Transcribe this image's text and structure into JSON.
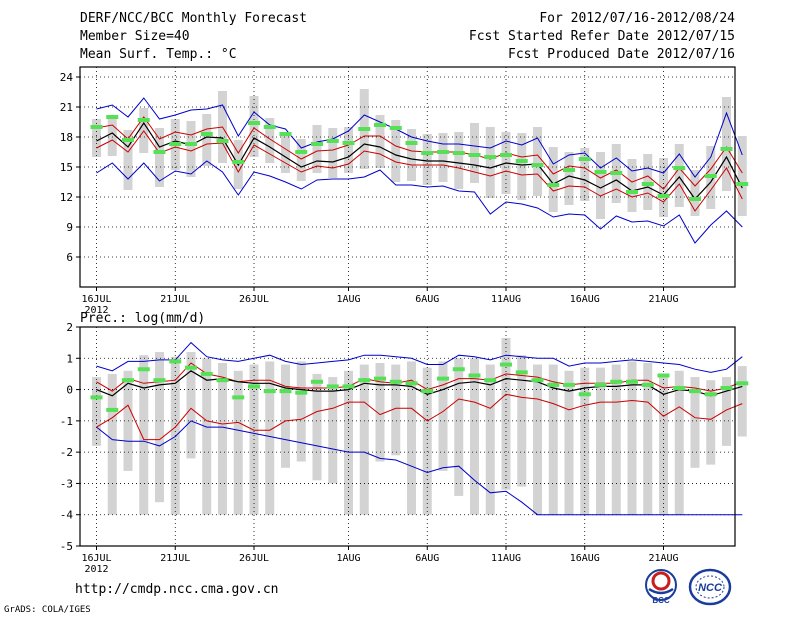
{
  "header": {
    "title": "DERF/NCC/BCC Monthly Forecast",
    "member_size": "Member Size=40",
    "variable": "Mean Surf. Temp.: °C",
    "fcst_range": "For 2012/07/16-2012/08/24",
    "fcst_started": "Fcst Started Refer Date 2012/07/15",
    "fcst_produced": "Fcst Produced Date 2012/07/16"
  },
  "footer": {
    "url": "http://cmdp.ncc.cma.gov.cn",
    "grads": "GrADS: COLA/IGES",
    "logo_bcc": "BCC",
    "logo_ncc": "NCC"
  },
  "colors": {
    "mean": "#000000",
    "quartile": "#cc0000",
    "envelope": "#0000cc",
    "box": "#d3d3d3",
    "obs": "#55e055"
  },
  "chart_data": [
    {
      "type": "line",
      "title": "Mean Surf. Temp.: °C",
      "xlabel": "",
      "ylabel": "",
      "ylim": [
        3,
        25
      ],
      "yticks": [
        6,
        9,
        12,
        15,
        18,
        21,
        24
      ],
      "xticks": [
        {
          "day": 0,
          "label": "16JUL",
          "sub": "2012"
        },
        {
          "day": 5,
          "label": "21JUL"
        },
        {
          "day": 10,
          "label": "26JUL"
        },
        {
          "day": 16,
          "label": "1AUG"
        },
        {
          "day": 21,
          "label": "6AUG"
        },
        {
          "day": 26,
          "label": "11AUG"
        },
        {
          "day": 31,
          "label": "16AUG"
        },
        {
          "day": 36,
          "label": "21AUG"
        }
      ],
      "series": [
        {
          "name": "max",
          "values": [
            20.8,
            21.2,
            20.0,
            21.9,
            19.8,
            20.2,
            20.7,
            20.8,
            21.2,
            18.1,
            20.5,
            19.2,
            18.8,
            16.9,
            17.5,
            17.8,
            18.6,
            20.2,
            19.5,
            18.8,
            18.0,
            17.6,
            17.3,
            17.3,
            17.1,
            16.9,
            17.6,
            17.2,
            17.9,
            15.3,
            16.2,
            16.4,
            14.9,
            15.9,
            14.6,
            14.9,
            14.4,
            16.3,
            14.0,
            16.0,
            20.4,
            16.2
          ]
        },
        {
          "name": "q75",
          "values": [
            18.9,
            19.2,
            17.8,
            20.0,
            17.8,
            18.5,
            18.2,
            18.8,
            19.0,
            16.4,
            18.9,
            17.8,
            16.8,
            15.8,
            16.6,
            16.7,
            17.2,
            18.1,
            18.1,
            17.1,
            16.6,
            16.5,
            16.5,
            16.5,
            16.2,
            15.8,
            16.4,
            16.0,
            16.2,
            14.3,
            15.1,
            14.9,
            13.9,
            14.7,
            13.5,
            14.1,
            12.8,
            14.9,
            13.1,
            14.8,
            17.0,
            14.4
          ]
        },
        {
          "name": "mean",
          "values": [
            17.6,
            18.4,
            17.0,
            19.4,
            17.0,
            17.6,
            17.2,
            18.0,
            17.9,
            15.2,
            17.9,
            17.0,
            16.0,
            15.0,
            15.6,
            15.5,
            16.0,
            17.3,
            17.0,
            16.2,
            15.8,
            15.6,
            15.6,
            15.4,
            15.2,
            14.9,
            15.4,
            15.2,
            15.3,
            13.3,
            14.1,
            13.7,
            12.9,
            13.7,
            12.6,
            13.0,
            12.2,
            14.0,
            11.8,
            13.5,
            16.0,
            12.9
          ]
        },
        {
          "name": "q25",
          "values": [
            16.9,
            17.7,
            16.5,
            18.6,
            16.4,
            17.0,
            16.6,
            17.3,
            17.4,
            14.5,
            17.2,
            16.3,
            15.4,
            14.5,
            15.1,
            14.9,
            15.3,
            16.6,
            16.3,
            15.5,
            15.2,
            15.2,
            15.2,
            14.9,
            14.5,
            14.1,
            14.6,
            14.2,
            14.3,
            12.6,
            13.1,
            13.0,
            12.1,
            12.8,
            12.0,
            12.4,
            11.5,
            13.3,
            10.6,
            12.7,
            14.9,
            11.8
          ]
        },
        {
          "name": "min",
          "values": [
            14.4,
            15.4,
            13.8,
            15.4,
            13.6,
            14.6,
            14.3,
            15.6,
            14.5,
            12.2,
            14.5,
            14.1,
            13.5,
            12.8,
            13.7,
            13.8,
            13.8,
            14.0,
            14.7,
            13.2,
            13.2,
            13.0,
            13.1,
            12.6,
            12.5,
            10.3,
            11.5,
            11.3,
            10.9,
            10.0,
            10.3,
            10.2,
            8.8,
            10.1,
            9.5,
            9.6,
            9.1,
            10.2,
            7.4,
            9.2,
            10.6,
            9.0
          ]
        },
        {
          "name": "box_hi",
          "values": [
            19.8,
            20.2,
            18.7,
            20.9,
            18.9,
            19.8,
            19.6,
            20.3,
            22.6,
            17.7,
            22.1,
            19.9,
            18.4,
            17.8,
            19.2,
            18.9,
            19.0,
            22.8,
            20.2,
            19.7,
            18.8,
            18.3,
            18.4,
            18.5,
            19.4,
            19.0,
            18.5,
            18.4,
            19.0,
            17.0,
            16.5,
            16.9,
            16.5,
            17.3,
            15.8,
            16.3,
            15.9,
            17.3,
            14.7,
            17.1,
            22.0,
            18.1
          ]
        },
        {
          "name": "box_lo",
          "values": [
            16.0,
            16.1,
            12.7,
            16.4,
            13.0,
            14.7,
            14.0,
            15.1,
            15.4,
            12.8,
            16.0,
            15.4,
            14.4,
            13.6,
            14.4,
            13.9,
            14.4,
            14.8,
            14.9,
            13.5,
            13.6,
            13.2,
            13.5,
            12.8,
            13.4,
            11.9,
            12.3,
            11.7,
            12.1,
            10.5,
            11.2,
            11.6,
            9.8,
            11.4,
            10.5,
            10.7,
            10.0,
            11.0,
            10.1,
            10.8,
            12.6,
            10.1
          ]
        },
        {
          "name": "obs",
          "values": [
            19.0,
            20.0,
            17.7,
            19.7,
            16.5,
            17.3,
            17.3,
            18.3,
            17.6,
            15.5,
            19.4,
            19.0,
            18.3,
            16.5,
            17.3,
            17.6,
            17.4,
            18.8,
            19.2,
            18.9,
            17.4,
            16.4,
            16.5,
            16.4,
            16.2,
            16.0,
            16.2,
            15.6,
            15.2,
            13.2,
            14.7,
            15.8,
            14.5,
            14.4,
            12.5,
            13.3,
            12.1,
            14.9,
            11.8,
            14.1,
            16.8,
            13.3
          ]
        }
      ]
    },
    {
      "type": "line",
      "title": "Prec.: log(mm/d)",
      "xlabel": "",
      "ylabel": "",
      "ylim": [
        -5,
        2
      ],
      "yticks": [
        -5,
        -4,
        -3,
        -2,
        -1,
        0,
        1,
        2
      ],
      "xticks": [
        {
          "day": 0,
          "label": "16JUL",
          "sub": "2012"
        },
        {
          "day": 5,
          "label": "21JUL"
        },
        {
          "day": 10,
          "label": "26JUL"
        },
        {
          "day": 16,
          "label": "1AUG"
        },
        {
          "day": 21,
          "label": "6AUG"
        },
        {
          "day": 26,
          "label": "11AUG"
        },
        {
          "day": 31,
          "label": "16AUG"
        },
        {
          "day": 36,
          "label": "21AUG"
        }
      ],
      "series": [
        {
          "name": "max",
          "values": [
            0.75,
            0.6,
            0.9,
            0.9,
            0.95,
            0.95,
            1.5,
            1.05,
            0.95,
            0.9,
            1.0,
            1.1,
            0.9,
            0.8,
            0.85,
            0.9,
            0.95,
            1.1,
            1.1,
            1.05,
            1.0,
            0.8,
            0.8,
            1.1,
            1.05,
            0.95,
            1.1,
            1.05,
            1.0,
            1.0,
            0.75,
            0.85,
            0.85,
            0.9,
            0.95,
            0.9,
            0.85,
            0.8,
            0.65,
            0.55,
            0.65,
            1.05
          ]
        },
        {
          "name": "q75",
          "values": [
            0.25,
            -0.05,
            0.35,
            0.2,
            0.25,
            0.3,
            0.85,
            0.5,
            0.4,
            0.25,
            0.3,
            0.3,
            0.1,
            0.05,
            0.05,
            0.05,
            0.1,
            0.35,
            0.25,
            0.2,
            0.3,
            0.0,
            0.15,
            0.35,
            0.35,
            0.3,
            0.5,
            0.45,
            0.4,
            0.25,
            0.15,
            0.2,
            0.2,
            0.2,
            0.3,
            0.3,
            0.05,
            0.1,
            0.05,
            -0.05,
            0.05,
            0.25
          ]
        },
        {
          "name": "mean",
          "values": [
            0.0,
            -0.2,
            0.2,
            0.05,
            0.15,
            0.2,
            0.6,
            0.3,
            0.35,
            0.25,
            0.2,
            0.2,
            0.05,
            0.0,
            -0.05,
            -0.05,
            0.0,
            0.2,
            0.15,
            0.15,
            0.1,
            -0.15,
            0.0,
            0.2,
            0.25,
            0.15,
            0.35,
            0.3,
            0.25,
            0.05,
            -0.05,
            0.05,
            0.1,
            0.1,
            0.15,
            0.15,
            -0.15,
            0.0,
            -0.05,
            -0.2,
            -0.05,
            0.1
          ]
        },
        {
          "name": "q25",
          "values": [
            -1.2,
            -0.9,
            -0.5,
            -1.6,
            -1.6,
            -1.2,
            -0.6,
            -1.0,
            -1.1,
            -1.05,
            -1.3,
            -1.3,
            -1.0,
            -0.95,
            -0.7,
            -0.6,
            -0.4,
            -0.4,
            -0.8,
            -0.6,
            -0.6,
            -1.0,
            -0.7,
            -0.3,
            -0.4,
            -0.6,
            -0.15,
            -0.25,
            -0.3,
            -0.45,
            -0.65,
            -0.5,
            -0.4,
            -0.4,
            -0.35,
            -0.4,
            -0.85,
            -0.55,
            -0.9,
            -0.95,
            -0.65,
            -0.45
          ]
        },
        {
          "name": "min",
          "values": [
            -1.2,
            -1.6,
            -1.65,
            -1.65,
            -1.8,
            -1.5,
            -1.0,
            -1.2,
            -1.2,
            -1.3,
            -1.4,
            -1.5,
            -1.6,
            -1.7,
            -1.8,
            -1.9,
            -2.0,
            -2.0,
            -2.2,
            -2.25,
            -2.45,
            -2.65,
            -2.5,
            -2.45,
            -2.9,
            -3.3,
            -3.25,
            -3.6,
            -4.0,
            -4.0,
            -4.0,
            -4.0,
            -4.0,
            -4.0,
            -4.0,
            -4.0,
            -4.0,
            -4.0,
            -4.0,
            -4.0,
            -4.0,
            -4.0
          ]
        },
        {
          "name": "box_hi",
          "values": [
            0.4,
            0.5,
            0.6,
            1.1,
            1.2,
            1.05,
            1.2,
            1.0,
            0.85,
            0.6,
            0.8,
            0.9,
            0.8,
            0.9,
            0.5,
            0.4,
            0.6,
            0.8,
            0.85,
            0.8,
            0.9,
            0.7,
            0.9,
            1.0,
            1.0,
            0.8,
            1.65,
            1.1,
            0.8,
            0.8,
            0.6,
            0.7,
            0.7,
            0.8,
            0.9,
            0.85,
            0.5,
            0.6,
            0.4,
            0.3,
            0.4,
            0.75
          ]
        },
        {
          "name": "box_lo",
          "values": [
            -1.8,
            -4.0,
            -2.6,
            -4.0,
            -3.6,
            -4.0,
            -2.2,
            -4.0,
            -4.0,
            -4.0,
            -4.0,
            -4.0,
            -2.5,
            -2.3,
            -2.9,
            -3.0,
            -4.0,
            -4.0,
            -2.3,
            -2.1,
            -4.0,
            -4.0,
            -2.6,
            -3.4,
            -4.0,
            -4.0,
            -3.2,
            -3.1,
            -4.0,
            -4.0,
            -4.0,
            -4.0,
            -4.0,
            -4.0,
            -4.0,
            -4.0,
            -4.0,
            -4.0,
            -2.5,
            -2.4,
            -1.8,
            -1.5
          ]
        },
        {
          "name": "obs",
          "values": [
            -0.25,
            -0.65,
            0.3,
            0.65,
            0.3,
            0.9,
            0.7,
            0.5,
            0.3,
            -0.25,
            0.1,
            -0.05,
            -0.05,
            -0.1,
            0.25,
            0.1,
            0.1,
            0.3,
            0.35,
            0.25,
            0.2,
            -0.05,
            0.35,
            0.65,
            0.45,
            0.3,
            0.8,
            0.55,
            0.3,
            0.15,
            0.15,
            -0.15,
            0.15,
            0.25,
            0.25,
            0.15,
            0.45,
            0.05,
            -0.05,
            -0.15,
            0.05,
            0.2
          ]
        }
      ]
    }
  ]
}
